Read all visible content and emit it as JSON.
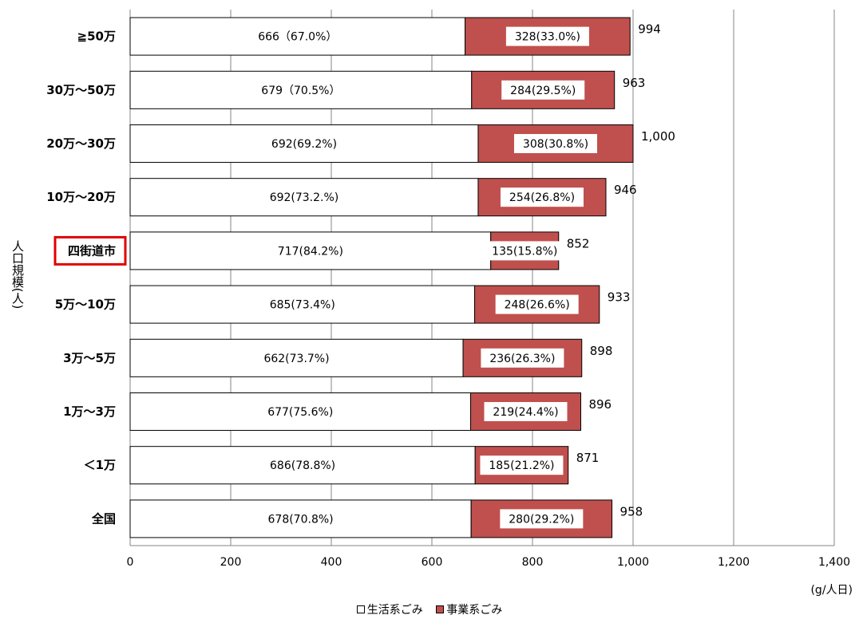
{
  "chart_data": {
    "type": "bar",
    "orientation": "horizontal",
    "stacked": true,
    "categories": [
      "≧50万",
      "30万～50万",
      "20万～30万",
      "10万～20万",
      "四街道市",
      "5万～10万",
      "3万～5万",
      "1万～3万",
      "＜1万",
      "全国"
    ],
    "highlight_category": "四街道市",
    "series": [
      {
        "name": "生活系ごみ",
        "color": "#ffffff",
        "values": [
          666,
          679,
          692,
          692,
          717,
          685,
          662,
          677,
          686,
          678
        ],
        "labels": [
          "666（67.0%）",
          "679（70.5%）",
          "692(69.2%)",
          "692(73.2.%)",
          "717(84.2%)",
          "685(73.4%)",
          "662(73.7%)",
          "677(75.6%)",
          "686(78.8%)",
          "678(70.8%)"
        ]
      },
      {
        "name": "事業系ごみ",
        "color": "#c0504d",
        "values": [
          328,
          284,
          308,
          254,
          135,
          248,
          236,
          219,
          185,
          280
        ],
        "labels": [
          "328(33.0%)",
          "284(29.5%)",
          "308(30.8%)",
          "254(26.8%)",
          "135(15.8%)",
          "248(26.6%)",
          "236(26.3%)",
          "219(24.4%)",
          "185(21.2%)",
          "280(29.2%)"
        ]
      }
    ],
    "totals": [
      "994",
      "963",
      "1,000",
      "946",
      "852",
      "933",
      "898",
      "896",
      "871",
      "958"
    ],
    "xlim": [
      0,
      1400
    ],
    "xticks": [
      0,
      200,
      400,
      600,
      800,
      1000,
      1200,
      1400
    ],
    "xtick_labels": [
      "0",
      "200",
      "400",
      "600",
      "800",
      "1,000",
      "1,200",
      "1,400"
    ],
    "xlabel": "(g/人日)",
    "ylabel": "人口規模(人)",
    "grid": "vertical",
    "legend": "bottom"
  },
  "legend": {
    "household": "生活系ごみ",
    "business": "事業系ごみ"
  }
}
